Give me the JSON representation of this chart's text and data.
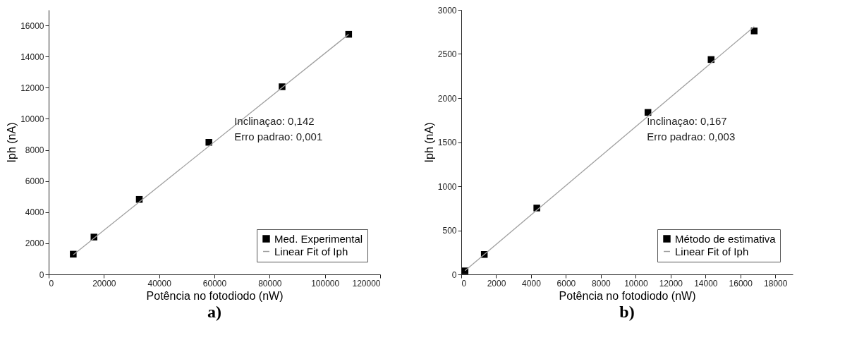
{
  "chart_data": [
    {
      "type": "scatter",
      "title": "a)",
      "xlabel": "Potência no fotodiodo (nW)",
      "ylabel": "Iph (nA)",
      "xlim": [
        0,
        120000
      ],
      "ylim": [
        0,
        17000
      ],
      "xticks": [
        0,
        20000,
        40000,
        60000,
        80000,
        100000,
        120000
      ],
      "yticks": [
        0,
        2000,
        4000,
        6000,
        8000,
        10000,
        12000,
        14000,
        16000
      ],
      "grid": false,
      "legend": "bottom right",
      "annotations": [
        "Inclinaçao: 0,142",
        "Erro padrao: 0,001"
      ],
      "series": [
        {
          "name": "Med. Experimental",
          "marker": "square",
          "color": "#000000",
          "x": [
            8900,
            16400,
            32800,
            58000,
            84500,
            108600
          ],
          "values": [
            1300,
            2400,
            4820,
            8490,
            12060,
            15430
          ]
        },
        {
          "name": "Linear Fit of Iph",
          "type": "line",
          "color": "#a0a0a0",
          "x": [
            8900,
            108600
          ],
          "values": [
            1260,
            15430
          ]
        }
      ]
    },
    {
      "type": "scatter",
      "title": "b)",
      "xlabel": "Potência no fotodiodo (nW)",
      "ylabel": "Iph (nA)",
      "xlim": [
        0,
        19000
      ],
      "ylim": [
        0,
        3000
      ],
      "xticks": [
        0,
        2000,
        4000,
        6000,
        8000,
        10000,
        12000,
        14000,
        16000,
        18000
      ],
      "yticks": [
        0,
        500,
        1000,
        1500,
        2000,
        2500,
        3000
      ],
      "grid": false,
      "legend": "bottom right",
      "annotations": [
        "Inclinaçao: 0,167",
        "Erro padrao: 0,003"
      ],
      "series": [
        {
          "name": "Método de estimativa",
          "marker": "square",
          "color": "#000000",
          "x": [
            215,
            1320,
            4330,
            10700,
            14320,
            16790
          ],
          "values": [
            40,
            226,
            753,
            1837,
            2437,
            2761
          ]
        },
        {
          "name": "Linear Fit of Iph",
          "type": "line",
          "color": "#a0a0a0",
          "x": [
            215,
            16790
          ],
          "values": [
            42,
            2810
          ]
        }
      ]
    }
  ]
}
